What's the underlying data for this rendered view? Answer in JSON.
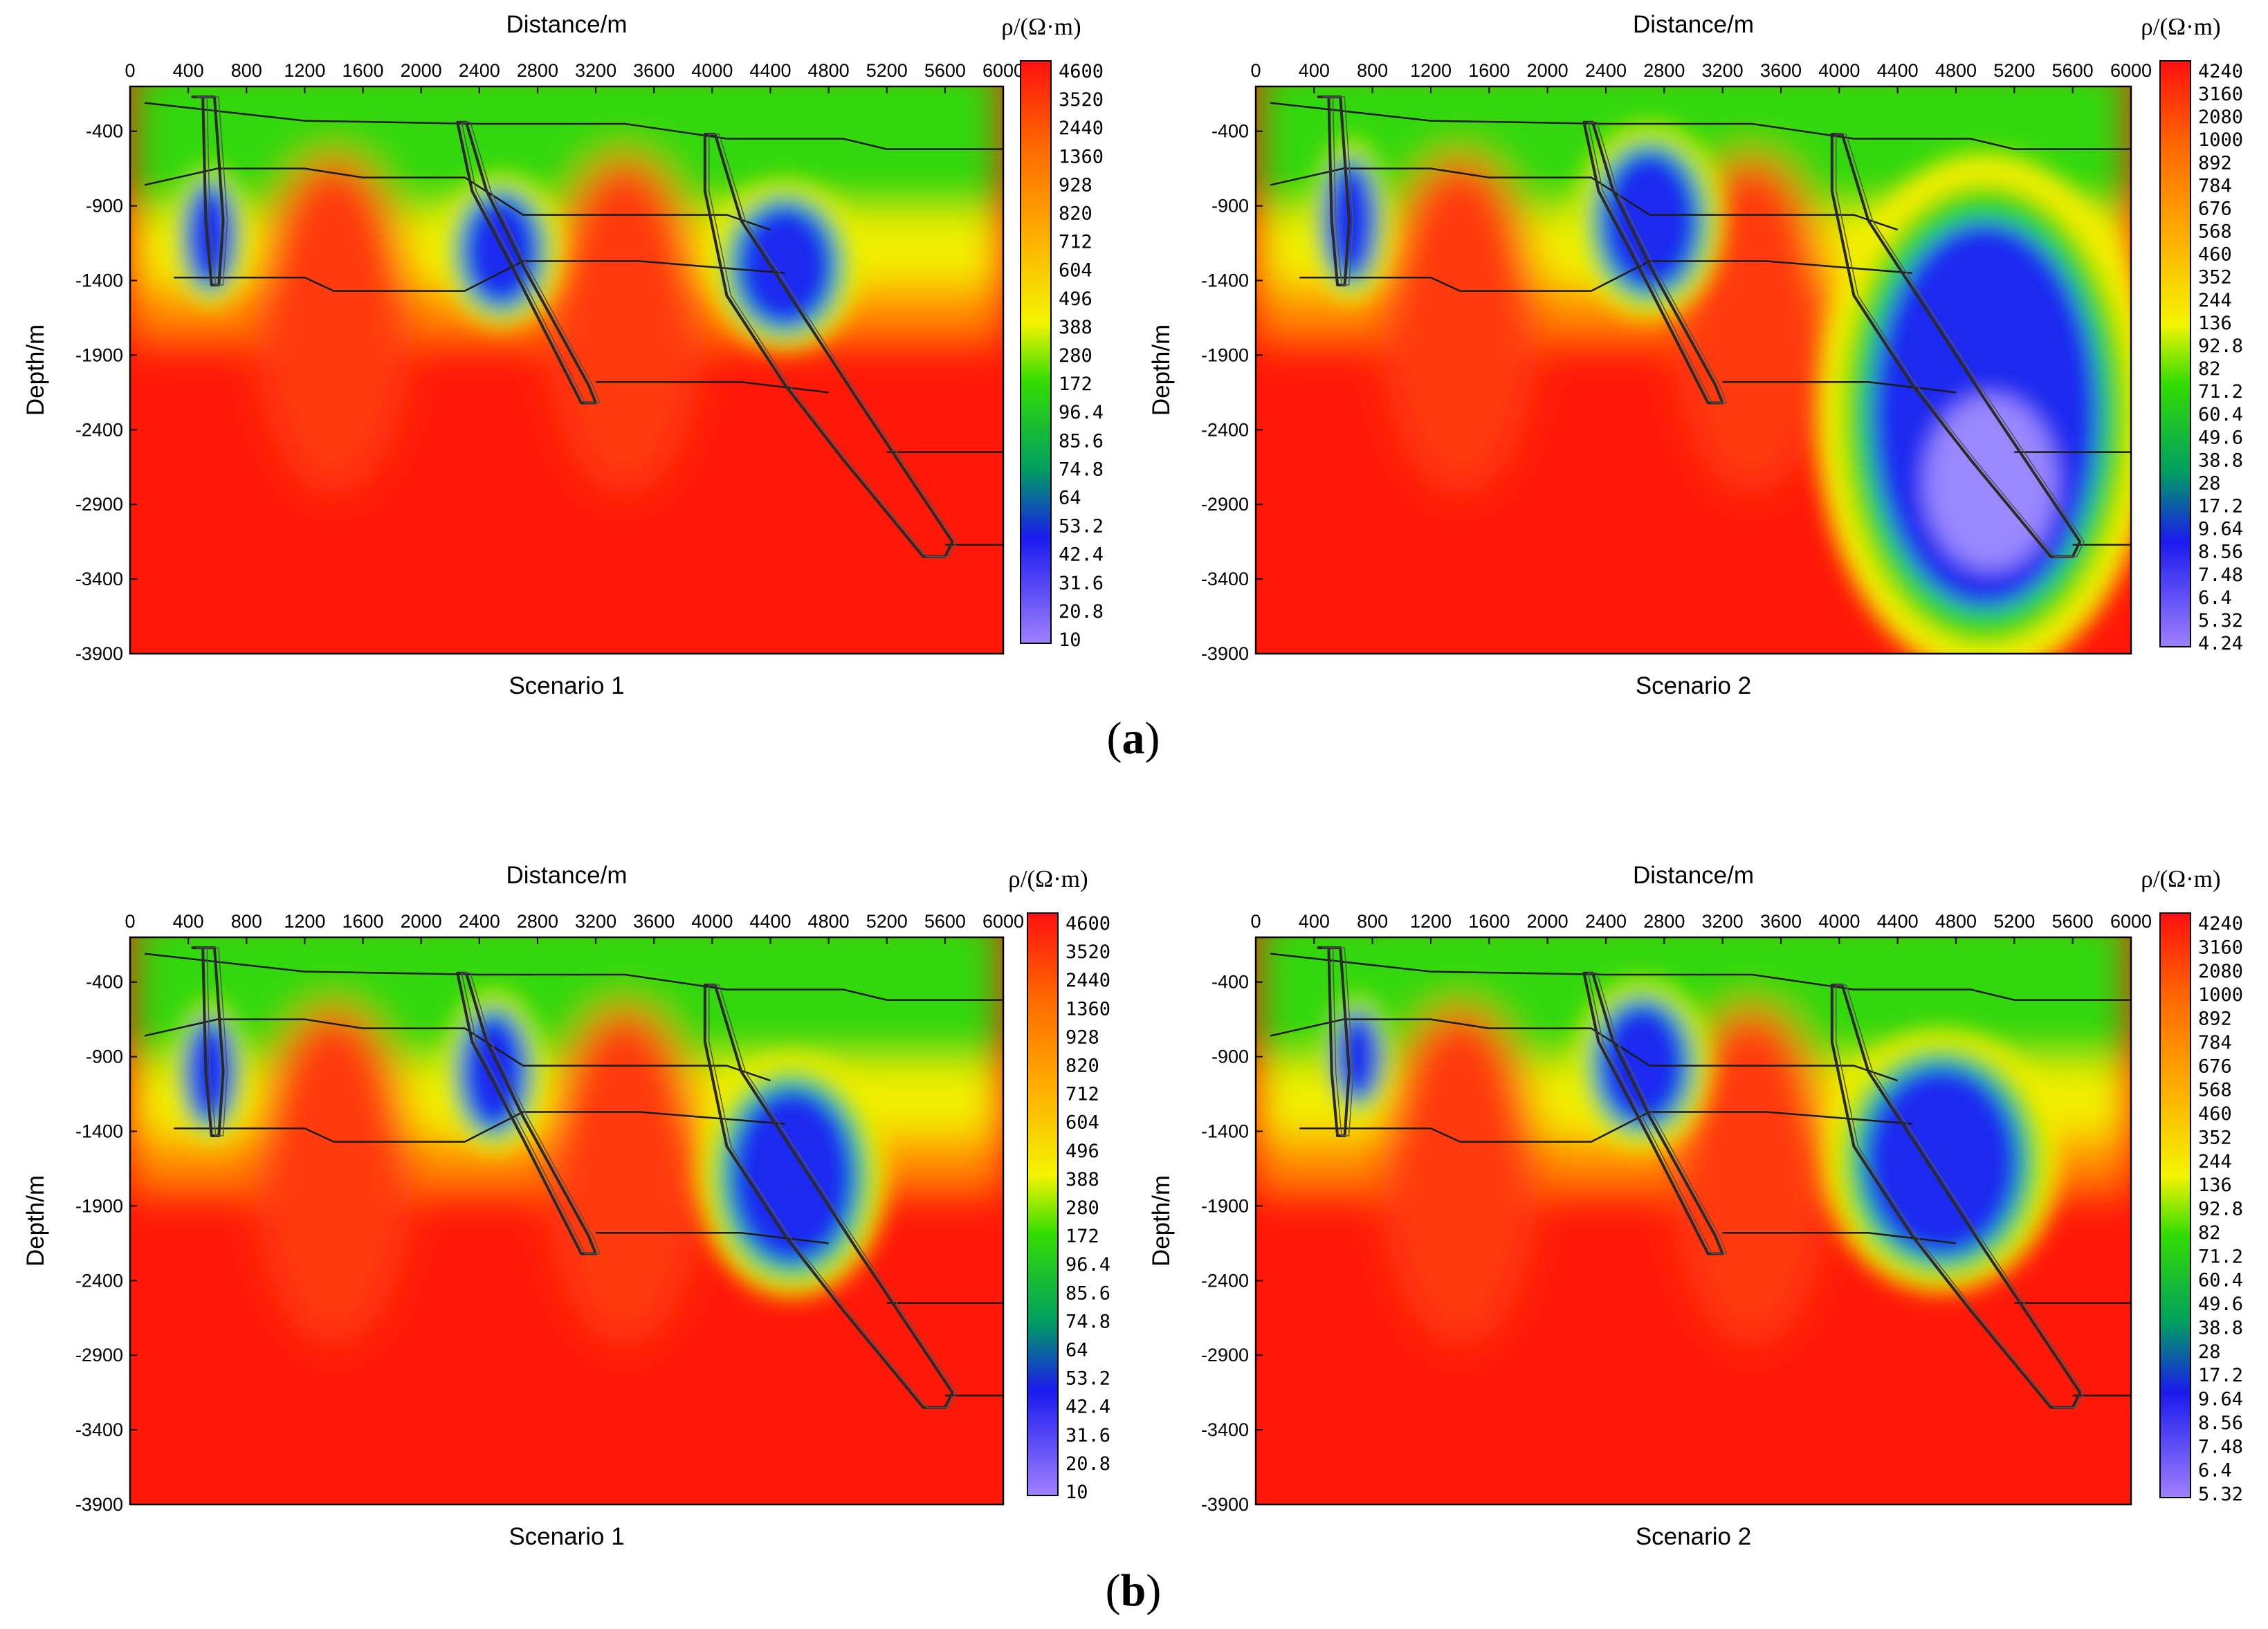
{
  "figure": {
    "captions": [
      {
        "open": "(",
        "letter": "a",
        "close": ")"
      },
      {
        "open": "(",
        "letter": "b",
        "close": ")"
      }
    ]
  },
  "chart_data": [
    {
      "type": "heatmap",
      "row": "a",
      "title": "Scenario 1",
      "xlabel": "Distance/m",
      "ylabel": "Depth/m",
      "colorbar_label": "ρ/(Ω·m)",
      "xlim": [
        0,
        6000
      ],
      "ylim": [
        -3900,
        -100
      ],
      "xticks": [
        0,
        400,
        800,
        1200,
        1600,
        2000,
        2400,
        2800,
        3200,
        3600,
        4000,
        4400,
        4800,
        5200,
        5600,
        6000
      ],
      "yticks": [
        -400,
        -900,
        -1400,
        -1900,
        -2400,
        -2900,
        -3400,
        -3900
      ],
      "colorbar_ticks": [
        "4600",
        "3520",
        "2440",
        "1360",
        "928",
        "820",
        "712",
        "604",
        "496",
        "388",
        "280",
        "172",
        "96.4",
        "85.6",
        "74.8",
        "64",
        "53.2",
        "42.4",
        "31.6",
        "20.8",
        "10"
      ],
      "anomalies": [
        {
          "x": 550,
          "y": -1100,
          "rx": 160,
          "ry": 350,
          "level": "low"
        },
        {
          "x": 2550,
          "y": -1200,
          "rx": 260,
          "ry": 380,
          "level": "low"
        },
        {
          "x": 4500,
          "y": -1300,
          "rx": 330,
          "ry": 420,
          "level": "low"
        }
      ]
    },
    {
      "type": "heatmap",
      "row": "a",
      "title": "Scenario 2",
      "xlabel": "Distance/m",
      "ylabel": "Depth/m",
      "colorbar_label": "ρ/(Ω·m)",
      "xlim": [
        0,
        6000
      ],
      "ylim": [
        -3900,
        -100
      ],
      "xticks": [
        0,
        400,
        800,
        1200,
        1600,
        2000,
        2400,
        2800,
        3200,
        3600,
        4000,
        4400,
        4800,
        5200,
        5600,
        6000
      ],
      "yticks": [
        -400,
        -900,
        -1400,
        -1900,
        -2400,
        -2900,
        -3400,
        -3900
      ],
      "colorbar_ticks": [
        "4240",
        "3160",
        "2080",
        "1000",
        "892",
        "784",
        "676",
        "568",
        "460",
        "352",
        "244",
        "136",
        "92.8",
        "82",
        "71.2",
        "60.4",
        "49.6",
        "38.8",
        "28",
        "17.2",
        "9.64",
        "8.56",
        "7.48",
        "6.4",
        "5.32",
        "4.24"
      ],
      "anomalies": [
        {
          "x": 650,
          "y": -1000,
          "rx": 170,
          "ry": 400,
          "level": "low"
        },
        {
          "x": 2700,
          "y": -1000,
          "rx": 330,
          "ry": 480,
          "level": "low"
        },
        {
          "x": 5000,
          "y": -2300,
          "rx": 750,
          "ry": 1300,
          "level": "very-low"
        }
      ]
    },
    {
      "type": "heatmap",
      "row": "b",
      "title": "Scenario 1",
      "xlabel": "Distance/m",
      "ylabel": "Depth/m",
      "colorbar_label": "ρ/(Ω·m)",
      "xlim": [
        0,
        6000
      ],
      "ylim": [
        -3900,
        -100
      ],
      "xticks": [
        0,
        400,
        800,
        1200,
        1600,
        2000,
        2400,
        2800,
        3200,
        3600,
        4000,
        4400,
        4800,
        5200,
        5600,
        6000
      ],
      "yticks": [
        -400,
        -900,
        -1400,
        -1900,
        -2400,
        -2900,
        -3400,
        -3900
      ],
      "colorbar_ticks": [
        "4600",
        "3520",
        "2440",
        "1360",
        "928",
        "820",
        "712",
        "604",
        "496",
        "388",
        "280",
        "172",
        "96.4",
        "85.6",
        "74.8",
        "64",
        "53.2",
        "42.4",
        "31.6",
        "20.8",
        "10"
      ],
      "anomalies": [
        {
          "x": 550,
          "y": -1000,
          "rx": 160,
          "ry": 350,
          "level": "low"
        },
        {
          "x": 2500,
          "y": -1000,
          "rx": 220,
          "ry": 400,
          "level": "low"
        },
        {
          "x": 4550,
          "y": -1700,
          "rx": 420,
          "ry": 600,
          "level": "low"
        }
      ]
    },
    {
      "type": "heatmap",
      "row": "b",
      "title": "Scenario 2",
      "xlabel": "Distance/m",
      "ylabel": "Depth/m",
      "colorbar_label": "ρ/(Ω·m)",
      "xlim": [
        0,
        6000
      ],
      "ylim": [
        -3900,
        -100
      ],
      "xticks": [
        0,
        400,
        800,
        1200,
        1600,
        2000,
        2400,
        2800,
        3200,
        3600,
        4000,
        4400,
        4800,
        5200,
        5600,
        6000
      ],
      "yticks": [
        -400,
        -900,
        -1400,
        -1900,
        -2400,
        -2900,
        -3400,
        -3900
      ],
      "colorbar_ticks": [
        "4240",
        "3160",
        "2080",
        "1000",
        "892",
        "784",
        "676",
        "568",
        "460",
        "352",
        "244",
        "136",
        "92.8",
        "82",
        "71.2",
        "60.4",
        "49.6",
        "38.8",
        "28",
        "17.2",
        "9.64",
        "8.56",
        "7.48",
        "6.4",
        "5.32"
      ],
      "anomalies": [
        {
          "x": 700,
          "y": -900,
          "rx": 150,
          "ry": 300,
          "level": "low"
        },
        {
          "x": 2650,
          "y": -950,
          "rx": 300,
          "ry": 420,
          "level": "low"
        },
        {
          "x": 4700,
          "y": -1600,
          "rx": 520,
          "ry": 650,
          "level": "low"
        }
      ]
    }
  ]
}
